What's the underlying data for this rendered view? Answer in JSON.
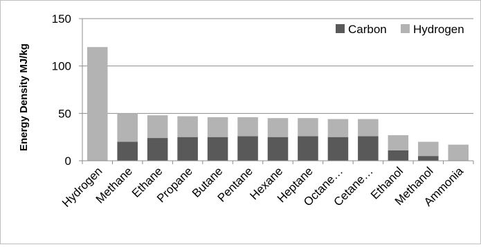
{
  "chart_data": {
    "type": "bar",
    "stacked": true,
    "ylabel": "Energy Density MJ/kg",
    "ylim": [
      0,
      150
    ],
    "yticks": [
      0,
      50,
      100,
      150
    ],
    "grid": true,
    "legend_position": "top-right",
    "categories": [
      "Hydrogen",
      "Methane",
      "Ethane",
      "Propane",
      "Butane",
      "Pentane",
      "Hexane",
      "Heptane",
      "Octane…",
      "Cetane…",
      "Ethanol",
      "Methanol",
      "Ammonia"
    ],
    "series": [
      {
        "name": "Carbon",
        "color": "#595959",
        "values": [
          0,
          20,
          24,
          25,
          25,
          26,
          25,
          26,
          25,
          26,
          11,
          5,
          0
        ]
      },
      {
        "name": "Hydrogen",
        "color": "#b3b3b3",
        "values": [
          120,
          30,
          24,
          22,
          21,
          20,
          20,
          19,
          19,
          18,
          16,
          15,
          17
        ]
      }
    ]
  }
}
